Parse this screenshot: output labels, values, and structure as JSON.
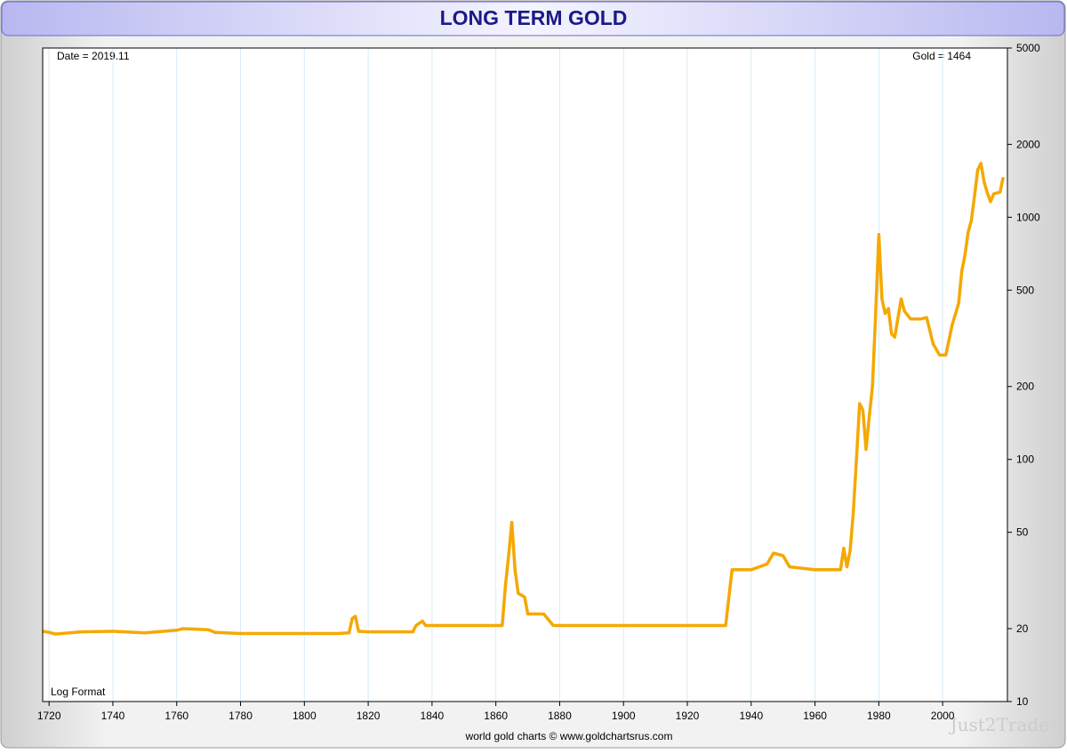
{
  "chart_data": {
    "type": "line",
    "title": "LONG TERM GOLD",
    "annotations": [
      "Date = 2019.11",
      "Gold = 1464",
      "Log Format",
      "world gold charts © www.goldchartsrus.com",
      "Just2Trade"
    ],
    "color": "#f5a800",
    "log_scale": true,
    "grid": true,
    "xlim": [
      1718,
      2020.3
    ],
    "xticks": [
      1720,
      1740,
      1760,
      1780,
      1800,
      1820,
      1840,
      1860,
      1880,
      1900,
      1920,
      1940,
      1960,
      1980,
      2000
    ],
    "ylim": [
      10,
      5000
    ],
    "yticks": [
      10,
      20,
      50,
      100,
      200,
      500,
      1000,
      2000,
      5000
    ],
    "x": [
      1718,
      1720,
      1722,
      1730,
      1740,
      1750,
      1760,
      1762,
      1770,
      1772,
      1780,
      1800,
      1810,
      1814,
      1815,
      1816,
      1817,
      1820,
      1834,
      1835,
      1837,
      1838,
      1850,
      1862,
      1863,
      1864,
      1865,
      1866,
      1867,
      1869,
      1870,
      1875,
      1878,
      1900,
      1932,
      1934,
      1940,
      1945,
      1947,
      1950,
      1952,
      1960,
      1968,
      1969,
      1970,
      1971,
      1972,
      1973,
      1974,
      1975,
      1976,
      1977,
      1978,
      1979,
      1980,
      1981,
      1982,
      1983,
      1984,
      1985,
      1987,
      1988,
      1990,
      1993,
      1995,
      1997,
      1999,
      2001,
      2003,
      2005,
      2006,
      2007,
      2008,
      2009,
      2010,
      2011,
      2012,
      2013,
      2014,
      2015,
      2016,
      2017,
      2018,
      2019
    ],
    "values": [
      19.5,
      19.3,
      19,
      19.4,
      19.5,
      19.2,
      19.7,
      20,
      19.8,
      19.3,
      19.1,
      19.1,
      19.1,
      19.2,
      22,
      22.5,
      19.5,
      19.4,
      19.4,
      20.6,
      21.5,
      20.6,
      20.6,
      20.6,
      30,
      40,
      55,
      35,
      28,
      27,
      23,
      23,
      20.6,
      20.6,
      20.6,
      35,
      35,
      37,
      41,
      40,
      36,
      35,
      35,
      43,
      36,
      42,
      60,
      100,
      170,
      160,
      110,
      150,
      200,
      400,
      850,
      460,
      400,
      420,
      330,
      320,
      460,
      410,
      380,
      380,
      385,
      300,
      270,
      270,
      360,
      440,
      600,
      700,
      870,
      970,
      1225,
      1570,
      1670,
      1400,
      1260,
      1160,
      1250,
      1260,
      1270,
      1464
    ]
  }
}
